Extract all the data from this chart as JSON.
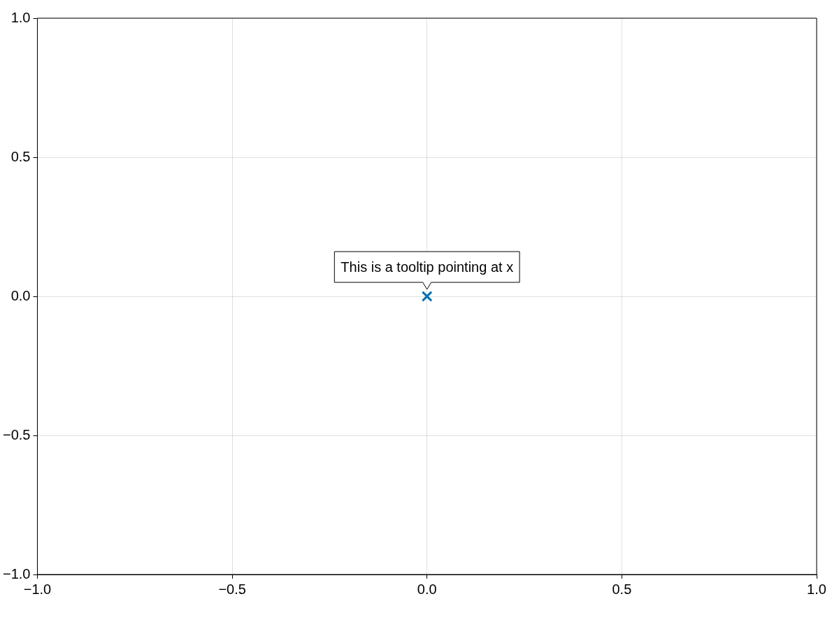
{
  "chart_data": {
    "type": "scatter",
    "x": [
      0
    ],
    "values": [
      0
    ],
    "color": "#0072b2",
    "marker": "cross",
    "xlim": [
      -1,
      1
    ],
    "ylim": [
      -1,
      1
    ],
    "xticks": [
      {
        "value": -1,
        "label": "−1.0"
      },
      {
        "value": -0.5,
        "label": "−0.5"
      },
      {
        "value": 0,
        "label": "0.0"
      },
      {
        "value": 0.5,
        "label": "0.5"
      },
      {
        "value": 1,
        "label": "1.0"
      }
    ],
    "yticks": [
      {
        "value": -1,
        "label": "−1.0"
      },
      {
        "value": -0.5,
        "label": "−0.5"
      },
      {
        "value": 0,
        "label": "0.0"
      },
      {
        "value": 0.5,
        "label": "0.5"
      },
      {
        "value": 1,
        "label": "1.0"
      }
    ],
    "grid": true,
    "annotations": [
      {
        "text": "This is a tooltip pointing at x",
        "x": 0,
        "y": 0
      }
    ]
  }
}
